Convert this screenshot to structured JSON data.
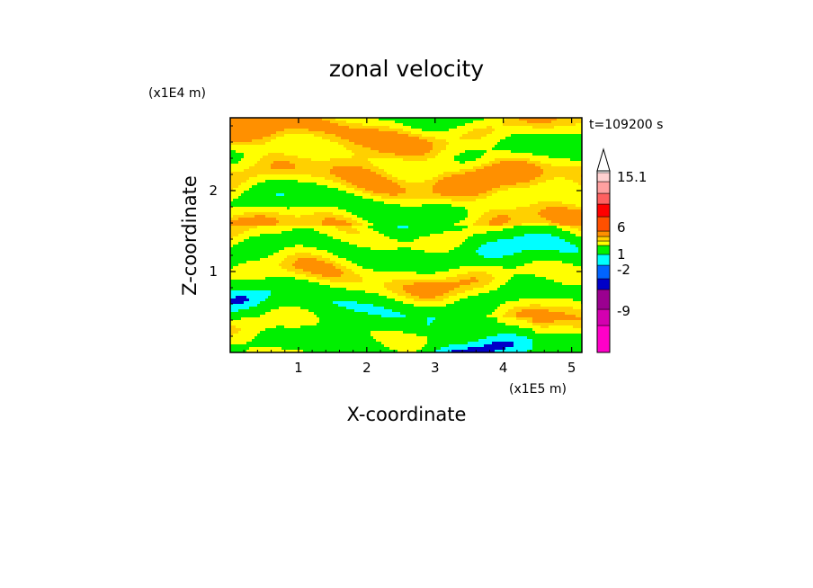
{
  "chart_data": {
    "type": "heatmap",
    "title": "zonal velocity",
    "xlabel": "X-coordinate",
    "ylabel": "Z-coordinate",
    "x_unit": "(x1E5 m)",
    "y_unit": "(x1E4 m)",
    "time_label": "t=109200 s",
    "xlim": [
      0,
      5.15
    ],
    "ylim": [
      0,
      2.9
    ],
    "x_ticks": [
      "1",
      "2",
      "3",
      "4",
      "5"
    ],
    "x_tick_values": [
      1,
      2,
      3,
      4,
      5
    ],
    "y_ticks": [
      "1",
      "2"
    ],
    "y_tick_values": [
      1,
      2
    ],
    "colorbar": {
      "labels": [
        "15.1",
        "6",
        "1",
        "-2",
        "-9"
      ],
      "colors": [
        "#ff00c8",
        "#d400b0",
        "#9b0090",
        "#0000c8",
        "#0064ff",
        "#00ffff",
        "#00f000",
        "#ffff00",
        "#ffd000",
        "#ff9000",
        "#ff5000",
        "#ff0000",
        "#ff6060",
        "#ffa0a0",
        "#ffd0d0"
      ],
      "extend_top": true
    },
    "palette_description_free_note": ""
  }
}
